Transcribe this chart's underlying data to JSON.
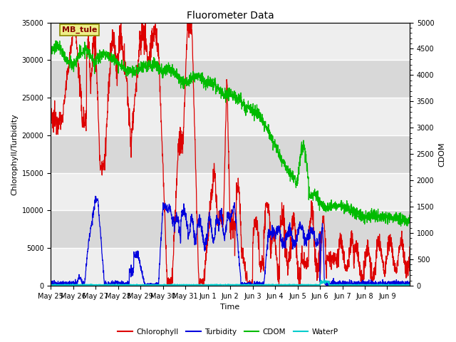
{
  "title": "Fluorometer Data",
  "xlabel": "Time",
  "ylabel_left": "Chlorophyll/Turbidity",
  "ylabel_right": "CDOM",
  "ylim_left": [
    0,
    35000
  ],
  "ylim_right": [
    0,
    5000
  ],
  "yticks_left": [
    0,
    5000,
    10000,
    15000,
    20000,
    25000,
    30000,
    35000
  ],
  "yticks_right": [
    0,
    500,
    1000,
    1500,
    2000,
    2500,
    3000,
    3500,
    4000,
    4500,
    5000
  ],
  "xtick_labels": [
    "May 25",
    "May 26",
    "May 27",
    "May 28",
    "May 29",
    "May 30",
    "May 31",
    "Jun 1",
    "Jun 2",
    "Jun 3",
    "Jun 4",
    "Jun 5",
    "Jun 6",
    "Jun 7",
    "Jun 8",
    "Jun 9"
  ],
  "colors": {
    "chlorophyll": "#dd0000",
    "turbidity": "#0000dd",
    "cdom": "#00bb00",
    "waterp": "#00cccc",
    "fig_bg": "#ffffff",
    "plot_bg_dark": "#d8d8d8",
    "plot_bg_light": "#eeeeee",
    "grid_line": "#ffffff"
  },
  "annotation_text": "MB_tule",
  "annotation_facecolor": "#eeee88",
  "annotation_edgecolor": "#888800",
  "legend_entries": [
    "Chlorophyll",
    "Turbidity",
    "CDOM",
    "WaterP"
  ],
  "cdom_scale": 7.0
}
